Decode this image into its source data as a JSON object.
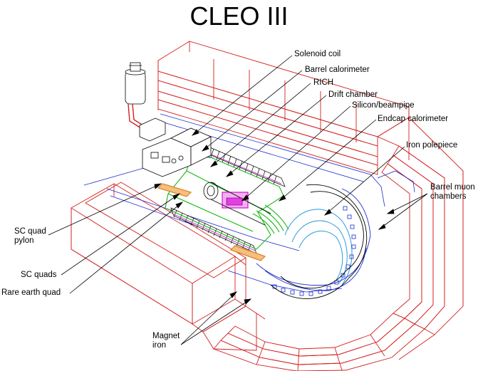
{
  "title": "CLEO III",
  "labels": {
    "solenoid_coil": "Solenoid coil",
    "barrel_calorimeter": "Barrel calorimeter",
    "rich": "RICH",
    "drift_chamber": "Drift chamber",
    "silicon_beampipe": "Silicon/beampipe",
    "endcap_calorimeter": "Endcap calorimeter",
    "iron_polepiece": "Iron polepiece",
    "barrel_muon_line1": "Barrel muon",
    "barrel_muon_line2": "chambers",
    "sc_quad_pylon_line1": "SC quad",
    "sc_quad_pylon_line2": "pylon",
    "sc_quads": "SC quads",
    "rare_earth_quad": "Rare earth quad",
    "magnet_iron_line1": "Magnet",
    "magnet_iron_line2": "iron"
  },
  "colors": {
    "iron": "#d42020",
    "muon": "#1a2bd0",
    "drift": "#16b816",
    "rich": "#d050d0",
    "calorimeter": "#000000",
    "quad": "#e08020",
    "tracker": "#2a9ad8",
    "silicon": "#d000d0"
  }
}
